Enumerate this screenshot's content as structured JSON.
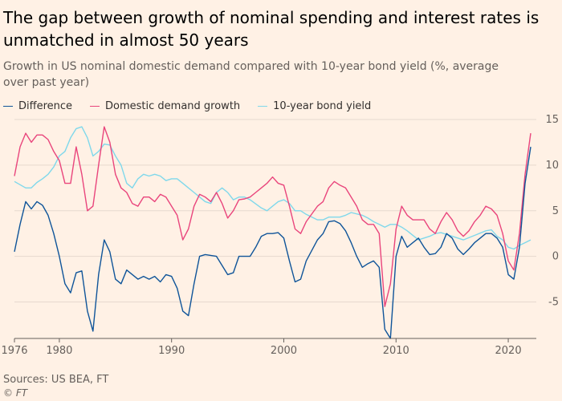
{
  "chart_data": {
    "type": "line",
    "title": "The gap between growth of nominal spending and interest rates is unmatched in almost 50 years",
    "subtitle": "Growth in US nominal domestic demand compared with 10-year bond yield (%, average over past year)",
    "x_ticks": [
      "1976",
      "1980",
      "1990",
      "2000",
      "2010",
      "2020"
    ],
    "x_tick_values": [
      1976,
      1980,
      1990,
      2000,
      2010,
      2020
    ],
    "y_ticks": [
      "15",
      "10",
      "5",
      "0",
      "-5"
    ],
    "y_tick_values": [
      15,
      10,
      5,
      0,
      -5
    ],
    "xlim": [
      1976,
      2022.5
    ],
    "ylim": [
      -9,
      15
    ],
    "legend_position": "top-left",
    "grid": true,
    "series": [
      {
        "name": "Difference",
        "color": "#0f5499",
        "points": [
          [
            1976,
            0.5
          ],
          [
            1976.5,
            3.5
          ],
          [
            1977,
            6
          ],
          [
            1977.5,
            5.2
          ],
          [
            1978,
            6
          ],
          [
            1978.5,
            5.6
          ],
          [
            1979,
            4.5
          ],
          [
            1979.5,
            2.5
          ],
          [
            1980,
            0
          ],
          [
            1980.5,
            -3
          ],
          [
            1981,
            -4
          ],
          [
            1981.5,
            -1.8
          ],
          [
            1982,
            -1.6
          ],
          [
            1982.5,
            -6
          ],
          [
            1983,
            -8.2
          ],
          [
            1983.5,
            -2
          ],
          [
            1984,
            1.8
          ],
          [
            1984.5,
            0.5
          ],
          [
            1985,
            -2.5
          ],
          [
            1985.5,
            -3
          ],
          [
            1986,
            -1.5
          ],
          [
            1987,
            -2.5
          ],
          [
            1987.5,
            -2.2
          ],
          [
            1988,
            -2.5
          ],
          [
            1988.5,
            -2.2
          ],
          [
            1989,
            -2.8
          ],
          [
            1989.5,
            -2
          ],
          [
            1990,
            -2.2
          ],
          [
            1990.5,
            -3.5
          ],
          [
            1991,
            -6
          ],
          [
            1991.5,
            -6.5
          ],
          [
            1992,
            -3
          ],
          [
            1992.5,
            0
          ],
          [
            1993,
            0.2
          ],
          [
            1994,
            0
          ],
          [
            1994.5,
            -1
          ],
          [
            1995,
            -2
          ],
          [
            1995.5,
            -1.8
          ],
          [
            1996,
            0
          ],
          [
            1997,
            0
          ],
          [
            1997.5,
            1
          ],
          [
            1998,
            2.2
          ],
          [
            1998.5,
            2.5
          ],
          [
            1999,
            2.5
          ],
          [
            1999.5,
            2.6
          ],
          [
            2000,
            2
          ],
          [
            2000.5,
            -0.5
          ],
          [
            2001,
            -2.8
          ],
          [
            2001.5,
            -2.5
          ],
          [
            2002,
            -0.5
          ],
          [
            2003,
            1.8
          ],
          [
            2003.5,
            2.5
          ],
          [
            2004,
            3.8
          ],
          [
            2004.5,
            3.9
          ],
          [
            2005,
            3.6
          ],
          [
            2005.5,
            2.8
          ],
          [
            2006,
            1.5
          ],
          [
            2006.5,
            0
          ],
          [
            2007,
            -1.2
          ],
          [
            2007.5,
            -0.8
          ],
          [
            2008,
            -0.5
          ],
          [
            2008.5,
            -1.2
          ],
          [
            2009,
            -8
          ],
          [
            2009.5,
            -9
          ],
          [
            2010,
            0
          ],
          [
            2010.5,
            2.2
          ],
          [
            2011,
            1
          ],
          [
            2011.5,
            1.5
          ],
          [
            2012,
            2
          ],
          [
            2012.5,
            1
          ],
          [
            2013,
            0.2
          ],
          [
            2013.5,
            0.3
          ],
          [
            2014,
            1
          ],
          [
            2014.5,
            2.5
          ],
          [
            2015,
            2
          ],
          [
            2015.5,
            0.8
          ],
          [
            2016,
            0.2
          ],
          [
            2016.5,
            0.8
          ],
          [
            2017,
            1.5
          ],
          [
            2017.5,
            2
          ],
          [
            2018,
            2.5
          ],
          [
            2018.5,
            2.5
          ],
          [
            2019,
            2
          ],
          [
            2019.5,
            1
          ],
          [
            2020,
            -2
          ],
          [
            2020.5,
            -2.5
          ],
          [
            2021,
            1
          ],
          [
            2021.5,
            8
          ],
          [
            2022,
            12
          ]
        ]
      },
      {
        "name": "Domestic demand growth",
        "color": "#e9457c",
        "points": [
          [
            1976,
            8.8
          ],
          [
            1976.5,
            12
          ],
          [
            1977,
            13.5
          ],
          [
            1977.5,
            12.5
          ],
          [
            1978,
            13.3
          ],
          [
            1978.5,
            13.3
          ],
          [
            1979,
            12.8
          ],
          [
            1979.5,
            11.5
          ],
          [
            1980,
            10.5
          ],
          [
            1980.5,
            8
          ],
          [
            1981,
            8
          ],
          [
            1981.5,
            12
          ],
          [
            1982,
            9
          ],
          [
            1982.5,
            5
          ],
          [
            1983,
            5.5
          ],
          [
            1983.5,
            10
          ],
          [
            1984,
            14.2
          ],
          [
            1984.5,
            12.5
          ],
          [
            1985,
            9
          ],
          [
            1985.5,
            7.5
          ],
          [
            1986,
            7
          ],
          [
            1986.5,
            5.8
          ],
          [
            1987,
            5.5
          ],
          [
            1987.5,
            6.5
          ],
          [
            1988,
            6.5
          ],
          [
            1988.5,
            6
          ],
          [
            1989,
            6.8
          ],
          [
            1989.5,
            6.5
          ],
          [
            1990,
            5.5
          ],
          [
            1990.5,
            4.5
          ],
          [
            1991,
            1.8
          ],
          [
            1991.5,
            3
          ],
          [
            1992,
            5.5
          ],
          [
            1992.5,
            6.8
          ],
          [
            1993,
            6.5
          ],
          [
            1993.5,
            6
          ],
          [
            1994,
            7
          ],
          [
            1994.5,
            5.8
          ],
          [
            1995,
            4.2
          ],
          [
            1995.5,
            5
          ],
          [
            1996,
            6.2
          ],
          [
            1996.5,
            6.3
          ],
          [
            1997,
            6.5
          ],
          [
            1997.5,
            7
          ],
          [
            1998,
            7.5
          ],
          [
            1998.5,
            8
          ],
          [
            1999,
            8.7
          ],
          [
            1999.5,
            8
          ],
          [
            2000,
            7.8
          ],
          [
            2000.5,
            5.5
          ],
          [
            2001,
            3
          ],
          [
            2001.5,
            2.5
          ],
          [
            2002,
            3.8
          ],
          [
            2003,
            5.5
          ],
          [
            2003.5,
            6
          ],
          [
            2004,
            7.5
          ],
          [
            2004.5,
            8.2
          ],
          [
            2005,
            7.8
          ],
          [
            2005.5,
            7.5
          ],
          [
            2006,
            6.5
          ],
          [
            2006.5,
            5.5
          ],
          [
            2007,
            4
          ],
          [
            2007.5,
            3.5
          ],
          [
            2008,
            3.5
          ],
          [
            2008.5,
            2.5
          ],
          [
            2009,
            -5.5
          ],
          [
            2009.5,
            -3
          ],
          [
            2010,
            3
          ],
          [
            2010.5,
            5.5
          ],
          [
            2011,
            4.5
          ],
          [
            2011.5,
            4
          ],
          [
            2012,
            4
          ],
          [
            2012.5,
            4
          ],
          [
            2013,
            3
          ],
          [
            2013.5,
            2.5
          ],
          [
            2014,
            3.8
          ],
          [
            2014.5,
            4.8
          ],
          [
            2015,
            4
          ],
          [
            2015.5,
            2.8
          ],
          [
            2016,
            2.2
          ],
          [
            2016.5,
            2.8
          ],
          [
            2017,
            3.8
          ],
          [
            2017.5,
            4.5
          ],
          [
            2018,
            5.5
          ],
          [
            2018.5,
            5.2
          ],
          [
            2019,
            4.5
          ],
          [
            2019.5,
            2.5
          ],
          [
            2020,
            -0.5
          ],
          [
            2020.5,
            -1.5
          ],
          [
            2021,
            2.5
          ],
          [
            2021.5,
            9
          ],
          [
            2022,
            13.5
          ]
        ]
      },
      {
        "name": "10-year bond yield",
        "color": "#7fd8eb",
        "points": [
          [
            1976,
            8.2
          ],
          [
            1977,
            7.5
          ],
          [
            1977.5,
            7.5
          ],
          [
            1978,
            8.1
          ],
          [
            1978.5,
            8.5
          ],
          [
            1979,
            9
          ],
          [
            1979.5,
            9.8
          ],
          [
            1980,
            11
          ],
          [
            1980.5,
            11.5
          ],
          [
            1981,
            13
          ],
          [
            1981.5,
            14
          ],
          [
            1982,
            14.2
          ],
          [
            1982.5,
            13
          ],
          [
            1983,
            11
          ],
          [
            1983.5,
            11.5
          ],
          [
            1984,
            12.3
          ],
          [
            1984.5,
            12.2
          ],
          [
            1985,
            11
          ],
          [
            1985.5,
            10
          ],
          [
            1986,
            8
          ],
          [
            1986.5,
            7.5
          ],
          [
            1987,
            8.5
          ],
          [
            1987.5,
            9
          ],
          [
            1988,
            8.8
          ],
          [
            1988.5,
            9
          ],
          [
            1989,
            8.8
          ],
          [
            1989.5,
            8.3
          ],
          [
            1990,
            8.5
          ],
          [
            1990.5,
            8.5
          ],
          [
            1991,
            8
          ],
          [
            1991.5,
            7.5
          ],
          [
            1992,
            7
          ],
          [
            1992.5,
            6.5
          ],
          [
            1993,
            6
          ],
          [
            1993.5,
            5.8
          ],
          [
            1994,
            7
          ],
          [
            1994.5,
            7.5
          ],
          [
            1995,
            7
          ],
          [
            1995.5,
            6.2
          ],
          [
            1996,
            6.5
          ],
          [
            1996.5,
            6.5
          ],
          [
            1997,
            6.2
          ],
          [
            1998,
            5.3
          ],
          [
            1998.5,
            5
          ],
          [
            1999,
            5.5
          ],
          [
            1999.5,
            6
          ],
          [
            2000,
            6.2
          ],
          [
            2000.5,
            5.8
          ],
          [
            2001,
            5
          ],
          [
            2001.5,
            5
          ],
          [
            2002,
            4.6
          ],
          [
            2003,
            4
          ],
          [
            2003.5,
            4
          ],
          [
            2004,
            4.3
          ],
          [
            2005,
            4.3
          ],
          [
            2005.5,
            4.5
          ],
          [
            2006,
            4.8
          ],
          [
            2007,
            4.5
          ],
          [
            2007.5,
            4.2
          ],
          [
            2008,
            3.8
          ],
          [
            2008.5,
            3.5
          ],
          [
            2009,
            3.2
          ],
          [
            2009.5,
            3.5
          ],
          [
            2010,
            3.5
          ],
          [
            2010.5,
            3.2
          ],
          [
            2011,
            2.8
          ],
          [
            2012,
            1.8
          ],
          [
            2013,
            2.2
          ],
          [
            2013.5,
            2.5
          ],
          [
            2014,
            2.6
          ],
          [
            2014.5,
            2.4
          ],
          [
            2015,
            2.2
          ],
          [
            2016,
            1.8
          ],
          [
            2017,
            2.3
          ],
          [
            2018,
            2.8
          ],
          [
            2018.5,
            2.9
          ],
          [
            2019,
            2.2
          ],
          [
            2019.5,
            1.8
          ],
          [
            2020,
            1
          ],
          [
            2020.5,
            0.8
          ],
          [
            2021,
            1.2
          ],
          [
            2021.5,
            1.5
          ],
          [
            2022,
            1.8
          ]
        ]
      }
    ]
  },
  "footer": {
    "source": "Sources: US BEA, FT",
    "copyright": "© FT"
  }
}
